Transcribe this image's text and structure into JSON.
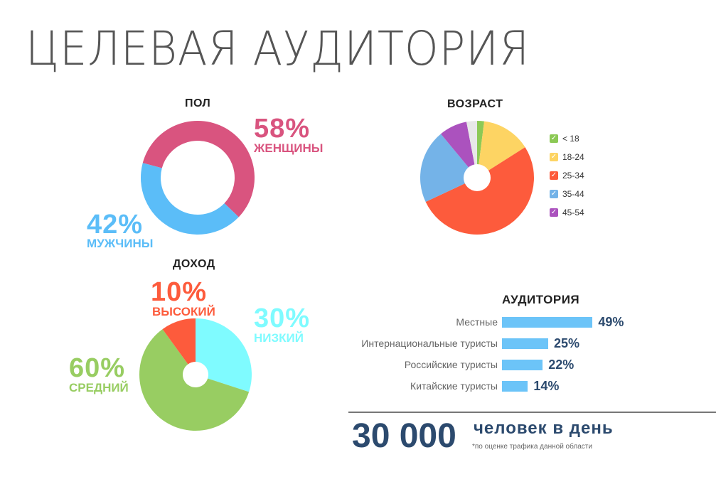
{
  "title": "ЦЕЛЕВАЯ АУДИТОРИЯ",
  "gender": {
    "heading": "ПОЛ",
    "items": [
      {
        "pct": "58%",
        "label": "ЖЕНЩИНЫ",
        "value": 58,
        "color": "#d9547f"
      },
      {
        "pct": "42%",
        "label": "МУЖЧИНЫ",
        "value": 42,
        "color": "#5bbdf8"
      }
    ]
  },
  "age": {
    "heading": "ВОЗРАСТ",
    "items": [
      {
        "label": "< 18",
        "value": 2,
        "color": "#8cc955"
      },
      {
        "label": "18-24",
        "value": 14,
        "color": "#fdd463"
      },
      {
        "label": "25-34",
        "value": 52,
        "color": "#fd5b3c"
      },
      {
        "label": "35-44",
        "value": 21,
        "color": "#74b3e8"
      },
      {
        "label": "45-54",
        "value": 8,
        "color": "#ab52be"
      }
    ],
    "other": {
      "value": 3,
      "color": "#e8e8e8"
    }
  },
  "income": {
    "heading": "ДОХОД",
    "items": [
      {
        "pct": "30%",
        "label": "НИЗКИЙ",
        "value": 30,
        "color": "#7ffbff"
      },
      {
        "pct": "60%",
        "label": "СРЕДНИЙ",
        "value": 60,
        "color": "#98cd62"
      },
      {
        "pct": "10%",
        "label": "ВЫСОКИЙ",
        "value": 10,
        "color": "#fd5b3c"
      }
    ]
  },
  "audience": {
    "heading": "АУДИТОРИЯ",
    "rows": [
      {
        "label": "Местные",
        "pct": "49%",
        "value": 49
      },
      {
        "label": "Интернациональные туристы",
        "pct": "25%",
        "value": 25
      },
      {
        "label": "Российские туристы",
        "pct": "22%",
        "value": 22
      },
      {
        "label": "Китайские туристы",
        "pct": "14%",
        "value": 14
      }
    ]
  },
  "traffic": {
    "number": "30 000",
    "unit": "человек в день",
    "note": "*по оценке трафика данной области"
  },
  "chart_data": [
    {
      "type": "pie",
      "title": "ПОЛ",
      "categories": [
        "ЖЕНЩИНЫ",
        "МУЖЧИНЫ"
      ],
      "values": [
        58,
        42
      ]
    },
    {
      "type": "pie",
      "title": "ВОЗРАСТ",
      "categories": [
        "< 18",
        "18-24",
        "25-34",
        "35-44",
        "45-54"
      ],
      "values": [
        2,
        14,
        52,
        21,
        8
      ]
    },
    {
      "type": "pie",
      "title": "ДОХОД",
      "categories": [
        "НИЗКИЙ",
        "СРЕДНИЙ",
        "ВЫСОКИЙ"
      ],
      "values": [
        30,
        60,
        10
      ]
    },
    {
      "type": "bar",
      "title": "АУДИТОРИЯ",
      "categories": [
        "Местные",
        "Интернациональные туристы",
        "Российские туристы",
        "Китайские туристы"
      ],
      "values": [
        49,
        25,
        22,
        14
      ]
    }
  ]
}
